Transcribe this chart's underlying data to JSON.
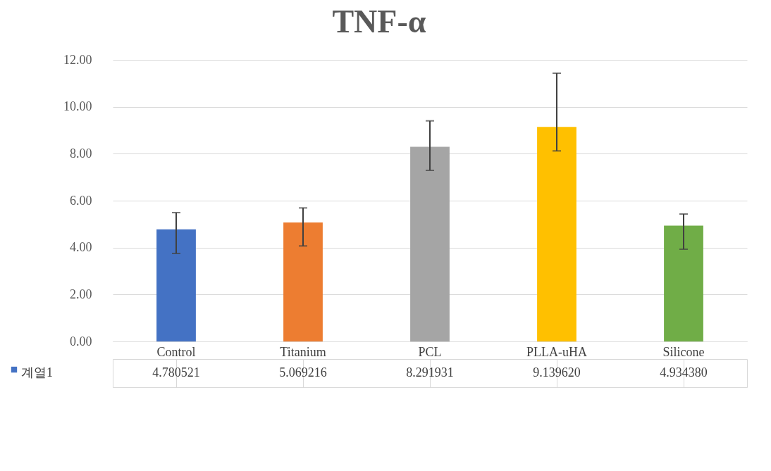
{
  "chart_data": {
    "type": "bar",
    "title": "TNF-α",
    "categories": [
      "Control",
      "Titanium",
      "PCL",
      "PLLA-uHA",
      "Silicone"
    ],
    "series": [
      {
        "name": "계열1",
        "color": "#4472c4",
        "colors": [
          "#4472c4",
          "#ed7d31",
          "#a5a5a5",
          "#ffc000",
          "#70ad47"
        ],
        "values": [
          4.780521,
          5.069216,
          8.291931,
          9.13962,
          4.93438
        ],
        "value_labels": [
          "4.780521",
          "5.069216",
          "8.291931",
          "9.139620",
          "4.934380"
        ],
        "errors": [
          [
            3.75,
            5.49
          ],
          [
            4.07,
            5.69
          ],
          [
            7.29,
            9.4
          ],
          [
            8.12,
            11.43
          ],
          [
            3.93,
            5.43
          ]
        ]
      }
    ],
    "ylim": [
      0,
      12
    ],
    "yticks": [
      {
        "value": 0,
        "label": "0.00"
      },
      {
        "value": 2,
        "label": "2.00"
      },
      {
        "value": 4,
        "label": "4.00"
      },
      {
        "value": 6,
        "label": "6.00"
      },
      {
        "value": 8,
        "label": "8.00"
      },
      {
        "value": 10,
        "label": "10.00"
      },
      {
        "value": 12,
        "label": "12.00"
      }
    ],
    "grid": "y",
    "legend": "bottom"
  }
}
